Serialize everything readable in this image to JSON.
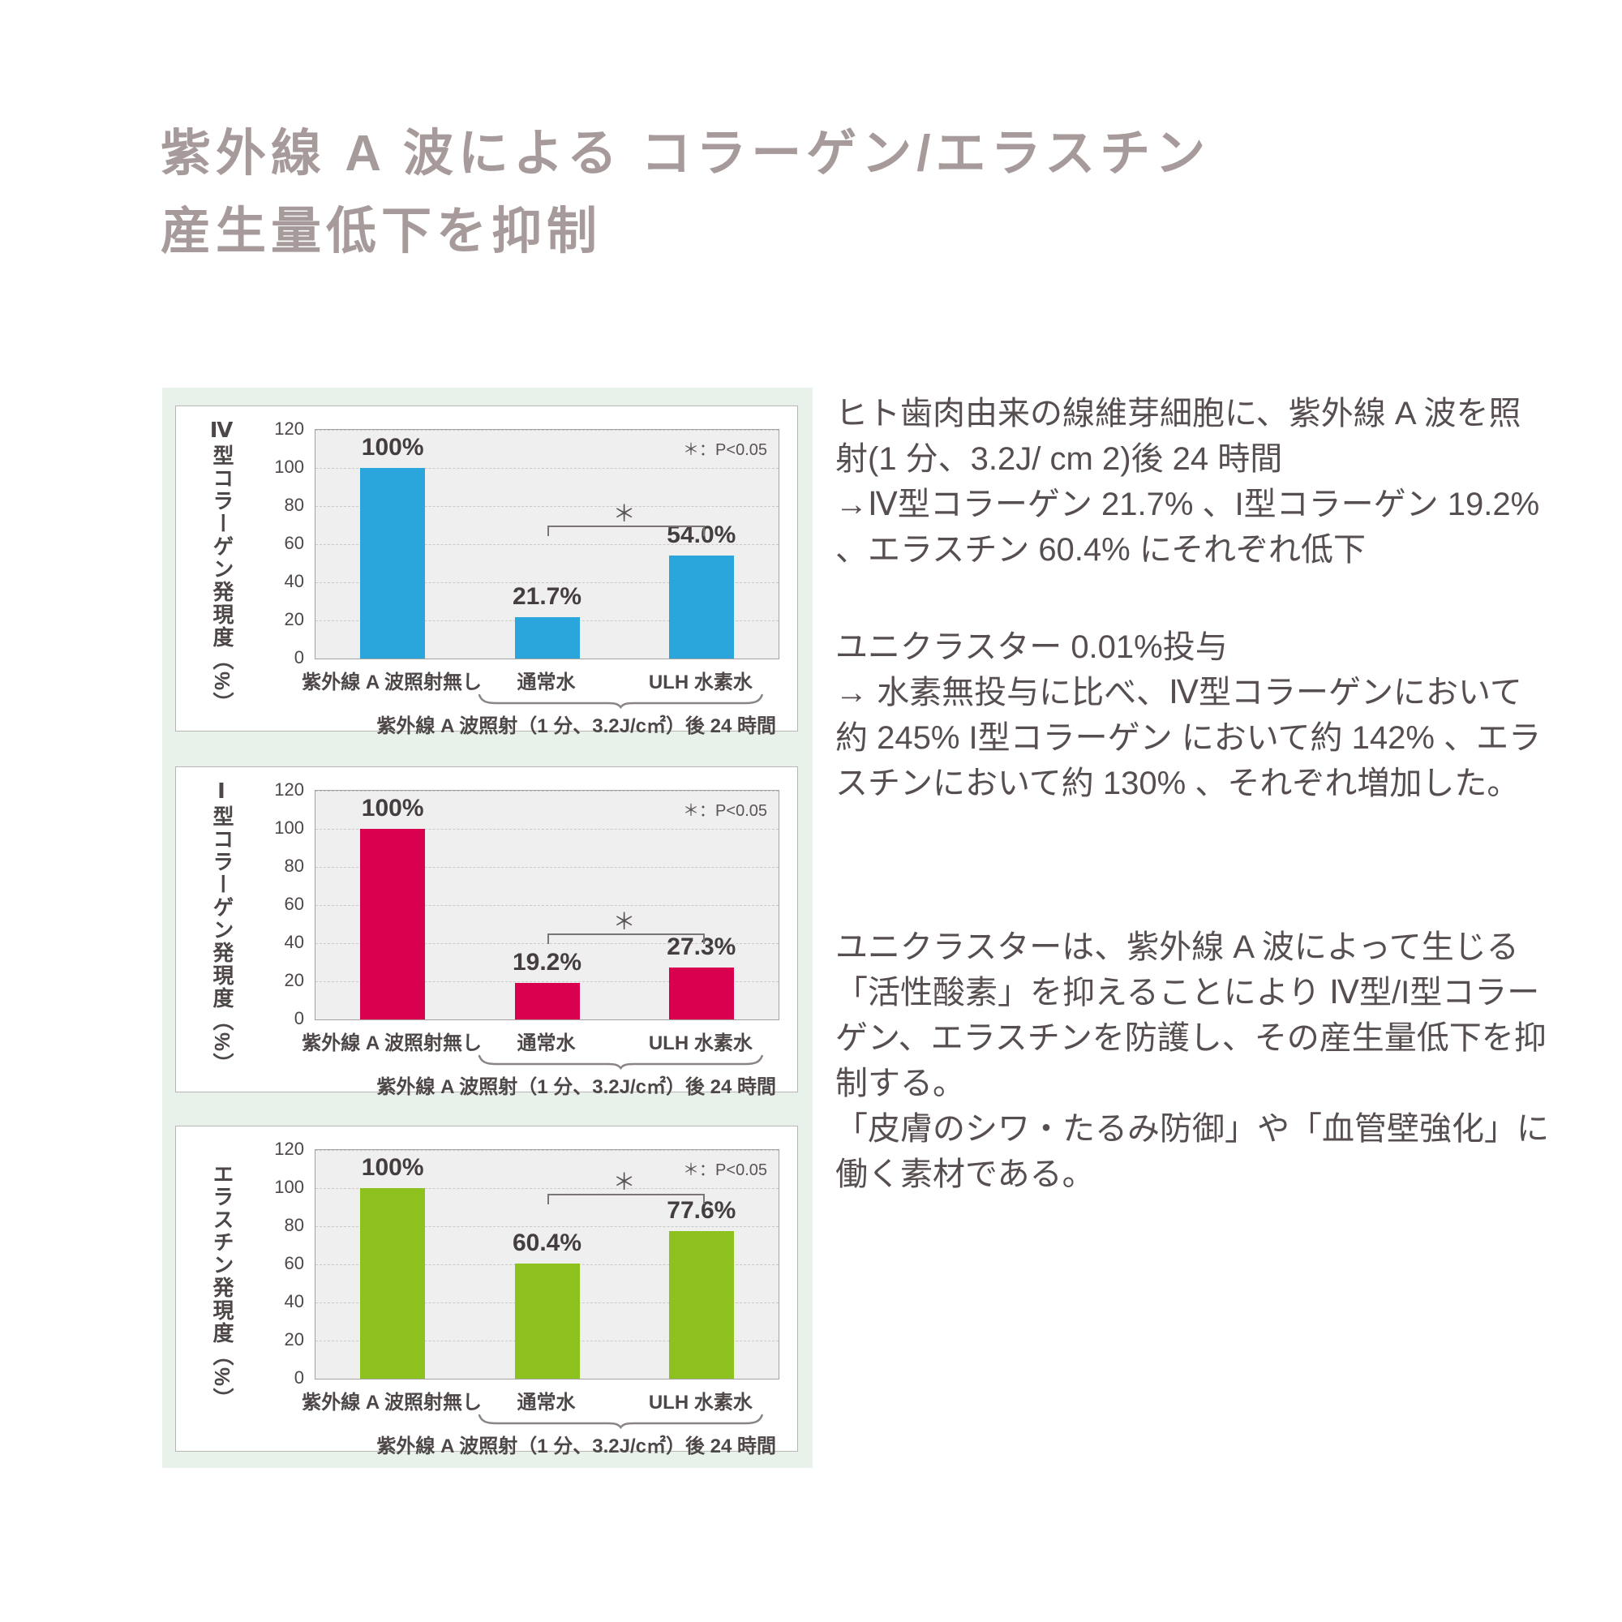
{
  "title": {
    "line1": "紫外線 A 波による コラーゲン/エラスチン",
    "line2": "産生量低下を抑制",
    "color": "#a79a9a"
  },
  "panel": {
    "background": "#e9f1eb"
  },
  "paragraphs": [
    {
      "segments": [
        "ヒト歯肉由来の線維芽細胞に、紫外線 A 波を照射(1 分、3.2J/ cm 2)後 24 時間",
        "→Ⅳ型コラーゲン 21.7% 、I型コラーゲン 19.2% 、エラスチン 60.4% にそれぞれ低下"
      ]
    },
    {
      "segments": [
        "ユニクラスター 0.01%投与",
        "→ 水素無投与に比べ、Ⅳ型コラーゲンにおいて約 245% I型コラーゲン において約 142% 、エラスチンにおいて約 130% 、それぞれ増加した。"
      ]
    },
    {
      "segments": [
        "ユニクラスターは、紫外線 A 波によって生じる「活性酸素」を抑えることにより Ⅳ型/I型コラーゲン、エラスチンを防護し、その産生量低下を抑制する。",
        "「皮膚のシワ・たるみ防御」や「血管壁強化」に働く素材である。"
      ]
    }
  ],
  "chart_data": [
    {
      "type": "bar",
      "axis_title": "Ⅳ型コラーゲン発現度（%）",
      "categories": [
        "紫外線 A 波照射無し",
        "通常水",
        "ULH 水素水"
      ],
      "values": [
        100,
        21.7,
        54.0
      ],
      "value_labels": [
        "100%",
        "21.7%",
        "54.0%"
      ],
      "bar_color": "#2BA6DC",
      "ylim": [
        0,
        120
      ],
      "yticks": [
        0,
        20,
        40,
        60,
        80,
        100,
        120
      ],
      "grid": true,
      "legend": false,
      "significance": {
        "between": [
          "通常水",
          "ULH 水素水"
        ],
        "marker": "＊",
        "note": "＊：P<0.05",
        "bracket_y": 70
      },
      "group_caption": "紫外線 A 波照射（1 分、3.2J/c㎡）後 24 時間"
    },
    {
      "type": "bar",
      "axis_title": "Ⅰ型コラーゲン発現度（%）",
      "categories": [
        "紫外線 A 波照射無し",
        "通常水",
        "ULH 水素水"
      ],
      "values": [
        100,
        19.2,
        27.3
      ],
      "value_labels": [
        "100%",
        "19.2%",
        "27.3%"
      ],
      "bar_color": "#D8004F",
      "ylim": [
        0,
        120
      ],
      "yticks": [
        0,
        20,
        40,
        60,
        80,
        100,
        120
      ],
      "grid": true,
      "legend": false,
      "significance": {
        "between": [
          "通常水",
          "ULH 水素水"
        ],
        "marker": "＊",
        "note": "＊：P<0.05",
        "bracket_y": 45
      },
      "group_caption": "紫外線 A 波照射（1 分、3.2J/c㎡）後 24 時間"
    },
    {
      "type": "bar",
      "axis_title": "エラスチン発現度（%）",
      "categories": [
        "紫外線 A 波照射無し",
        "通常水",
        "ULH 水素水"
      ],
      "values": [
        100,
        60.4,
        77.6
      ],
      "value_labels": [
        "100%",
        "60.4%",
        "77.6%"
      ],
      "bar_color": "#8CC11E",
      "ylim": [
        0,
        120
      ],
      "yticks": [
        0,
        20,
        40,
        60,
        80,
        100,
        120
      ],
      "grid": true,
      "legend": false,
      "significance": {
        "between": [
          "通常水",
          "ULH 水素水"
        ],
        "marker": "＊",
        "note": "＊：P<0.05",
        "bracket_y": 97
      },
      "group_caption": "紫外線 A 波照射（1 分、3.2J/c㎡）後 24 時間"
    }
  ]
}
